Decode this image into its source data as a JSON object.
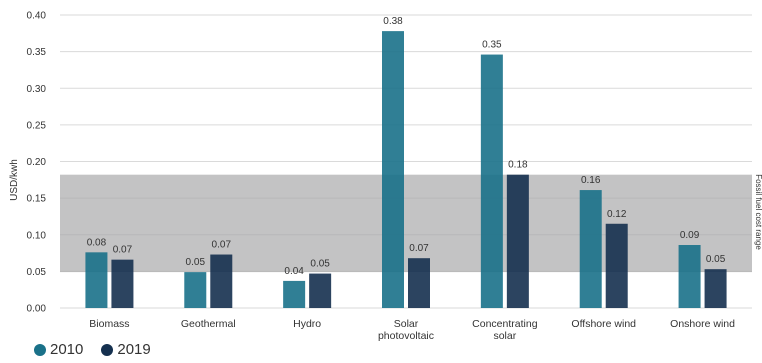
{
  "chart_data": {
    "type": "bar",
    "title": "",
    "xlabel": "",
    "ylabel": "USD/kwh",
    "ylim": [
      0,
      0.4
    ],
    "yticks": [
      "0.00",
      "0.05",
      "0.10",
      "0.15",
      "0.20",
      "0.25",
      "0.30",
      "0.35",
      "0.40"
    ],
    "grid": true,
    "legend_position": "bottom-left",
    "categories": [
      [
        "Biomass"
      ],
      [
        "Geothermal"
      ],
      [
        "Hydro"
      ],
      [
        "Solar",
        "photovoltaic"
      ],
      [
        "Concentrating",
        "solar"
      ],
      [
        "Offshore wind"
      ],
      [
        "Onshore wind"
      ]
    ],
    "series": [
      {
        "name": "2010",
        "color": "#1a7189",
        "values": [
          0.076,
          0.049,
          0.037,
          0.378,
          0.346,
          0.161,
          0.086
        ],
        "labels": [
          "0.08",
          "0.05",
          "0.04",
          "0.38",
          "0.35",
          "0.16",
          "0.09"
        ]
      },
      {
        "name": "2019",
        "color": "#15304f",
        "values": [
          0.066,
          0.073,
          0.047,
          0.068,
          0.182,
          0.115,
          0.053
        ],
        "labels": [
          "0.07",
          "0.07",
          "0.05",
          "0.07",
          "0.18",
          "0.12",
          "0.05"
        ]
      }
    ],
    "band": {
      "range": [
        0.049,
        0.182
      ],
      "label": "Fossil fuel cost range",
      "color": "#a9aaab"
    }
  }
}
